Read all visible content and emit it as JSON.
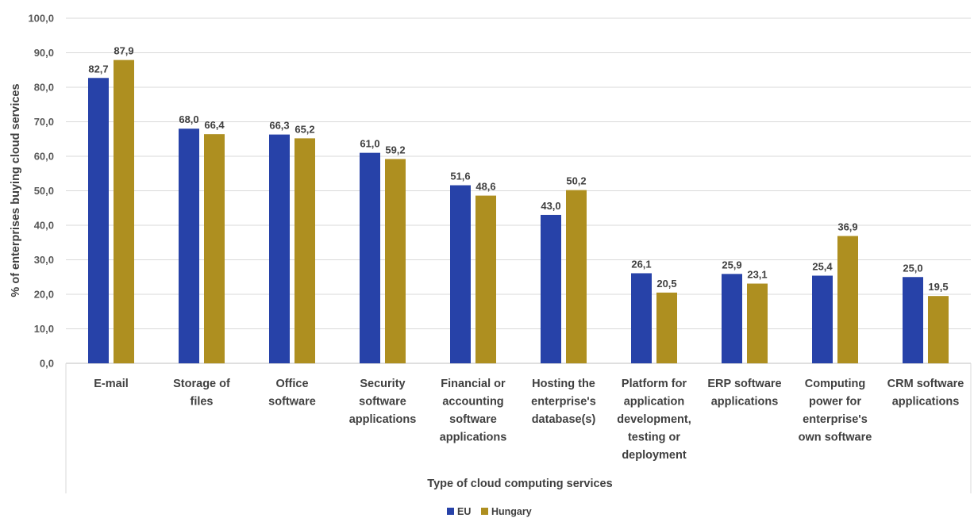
{
  "chart_data": {
    "type": "bar",
    "title": "",
    "xlabel": "Type of cloud computing services",
    "ylabel": "% of enterprises buying cloud services",
    "ylim": [
      0,
      100
    ],
    "ytick_step": 10,
    "ytick_labels": [
      "0,0",
      "10,0",
      "20,0",
      "30,0",
      "40,0",
      "50,0",
      "60,0",
      "70,0",
      "80,0",
      "90,0",
      "100,0"
    ],
    "grid": "horizontal",
    "legend_position": "bottom",
    "categories": [
      [
        "E-mail"
      ],
      [
        "Storage of",
        "files"
      ],
      [
        "Office",
        "software"
      ],
      [
        "Security",
        "software",
        "applications"
      ],
      [
        "Financial or",
        "accounting",
        "software",
        "applications"
      ],
      [
        "Hosting the",
        "enterprise's",
        "database(s)"
      ],
      [
        "Platform for",
        "application",
        "development,",
        "testing or",
        "deployment"
      ],
      [
        "ERP software",
        "applications"
      ],
      [
        "Computing",
        "power for",
        "enterprise's",
        "own software"
      ],
      [
        "CRM software",
        "applications"
      ]
    ],
    "series": [
      {
        "name": "EU",
        "color": "#2742A8",
        "values": [
          82.7,
          68.0,
          66.3,
          61.0,
          51.6,
          43.0,
          26.1,
          25.9,
          25.4,
          25.0
        ],
        "labels": [
          "82,7",
          "68,0",
          "66,3",
          "61,0",
          "51,6",
          "43,0",
          "26,1",
          "25,9",
          "25,4",
          "25,0"
        ]
      },
      {
        "name": "Hungary",
        "color": "#AE8F20",
        "values": [
          87.9,
          66.4,
          65.2,
          59.2,
          48.6,
          50.2,
          20.5,
          23.1,
          36.9,
          19.5
        ],
        "labels": [
          "87,9",
          "66,4",
          "65,2",
          "59,2",
          "48,6",
          "50,2",
          "20,5",
          "23,1",
          "36,9",
          "19,5"
        ]
      }
    ]
  }
}
